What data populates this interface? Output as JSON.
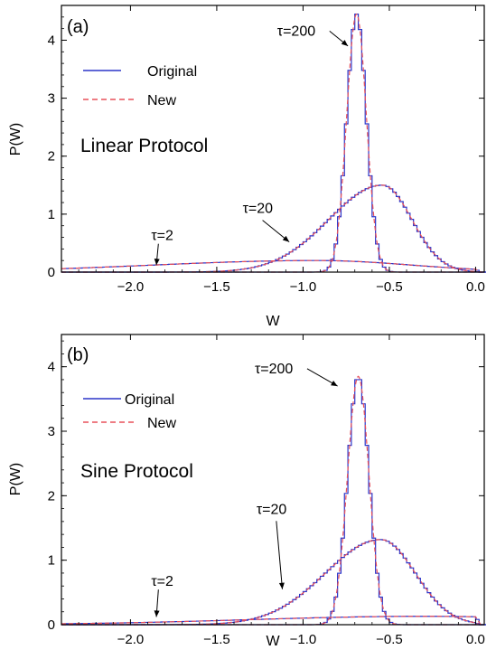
{
  "colors": {
    "original": "#2b35c9",
    "new": "#e8505a",
    "frame": "#000000"
  },
  "chart_data": [
    {
      "type": "line",
      "panel_label": "(a)",
      "annotation": "Linear Protocol",
      "xlabel": "W",
      "ylabel": "P(W)",
      "xlim": [
        -2.4,
        0.05
      ],
      "ylim": [
        0,
        4.6
      ],
      "x_ticks": [
        -2.0,
        -1.5,
        -1.0,
        -0.5,
        0.0
      ],
      "x_tick_labels": [
        "−2.0",
        "−1.5",
        "−1.0",
        "−0.5",
        "0.0"
      ],
      "y_ticks": [
        0,
        1,
        2,
        3,
        4
      ],
      "y_tick_labels": [
        "0",
        "1",
        "2",
        "3",
        "4"
      ],
      "grid": false,
      "legend": {
        "position": "top-left",
        "entries": [
          {
            "label": "Original",
            "style": "solid",
            "color": "#2b35c9"
          },
          {
            "label": "New",
            "style": "dashed",
            "color": "#e8505a"
          }
        ]
      },
      "series": [
        {
          "label": "τ=200",
          "kind": "gaussian",
          "mean": -0.69,
          "sd": 0.057,
          "peak": 4.45
        },
        {
          "label": "τ=20",
          "kind": "skewed",
          "mode": -0.54,
          "sd_left": 0.31,
          "sd_right": 0.17,
          "peak": 1.5
        },
        {
          "label": "τ=2",
          "kind": "skewed",
          "mode": -0.92,
          "sd_left": 0.95,
          "sd_right": 0.55,
          "peak": 0.2
        }
      ],
      "tau_labels": [
        {
          "text": "τ=200",
          "x": -1.15,
          "y": 4.08,
          "arrow_to": [
            -0.74,
            3.9
          ]
        },
        {
          "text": "τ=20",
          "x": -1.35,
          "y": 1.02,
          "arrow_to": [
            -1.08,
            0.52
          ]
        },
        {
          "text": "τ=2",
          "x": -1.88,
          "y": 0.55,
          "arrow_to": [
            -1.85,
            0.12
          ]
        }
      ]
    },
    {
      "type": "line",
      "panel_label": "(b)",
      "annotation": "Sine Protocol",
      "xlabel": "W",
      "ylabel": "P(W)",
      "xlim": [
        -2.4,
        0.05
      ],
      "ylim": [
        0,
        4.5
      ],
      "x_ticks": [
        -2.0,
        -1.5,
        -1.0,
        -0.5,
        0.0
      ],
      "x_tick_labels": [
        "−2.0",
        "−1.5",
        "−1.0",
        "−0.5",
        "0.0"
      ],
      "y_ticks": [
        0,
        1,
        2,
        3,
        4
      ],
      "y_tick_labels": [
        "0",
        "1",
        "2",
        "3",
        "4"
      ],
      "grid": false,
      "legend": {
        "position": "top-left",
        "entries": [
          {
            "label": "Original",
            "style": "solid",
            "color": "#2b35c9"
          },
          {
            "label": "New",
            "style": "dashed",
            "color": "#e8505a"
          }
        ]
      },
      "series": [
        {
          "label": "τ=200",
          "kind": "gaussian",
          "mean": -0.68,
          "sd": 0.062,
          "peak": 3.85
        },
        {
          "label": "τ=20",
          "kind": "skewed",
          "mode": -0.55,
          "sd_left": 0.32,
          "sd_right": 0.2,
          "peak": 1.32
        },
        {
          "label": "τ=2",
          "kind": "skewed",
          "mode": -0.3,
          "sd_left": 1.0,
          "sd_right": 0.9,
          "peak": 0.13
        }
      ],
      "tau_labels": [
        {
          "text": "τ=200",
          "x": -1.28,
          "y": 3.9,
          "arrow_to": [
            -0.8,
            3.7
          ]
        },
        {
          "text": "τ=20",
          "x": -1.27,
          "y": 1.72,
          "arrow_to": [
            -1.12,
            0.55
          ]
        },
        {
          "text": "τ=2",
          "x": -1.88,
          "y": 0.6,
          "arrow_to": [
            -1.85,
            0.12
          ]
        }
      ]
    }
  ]
}
